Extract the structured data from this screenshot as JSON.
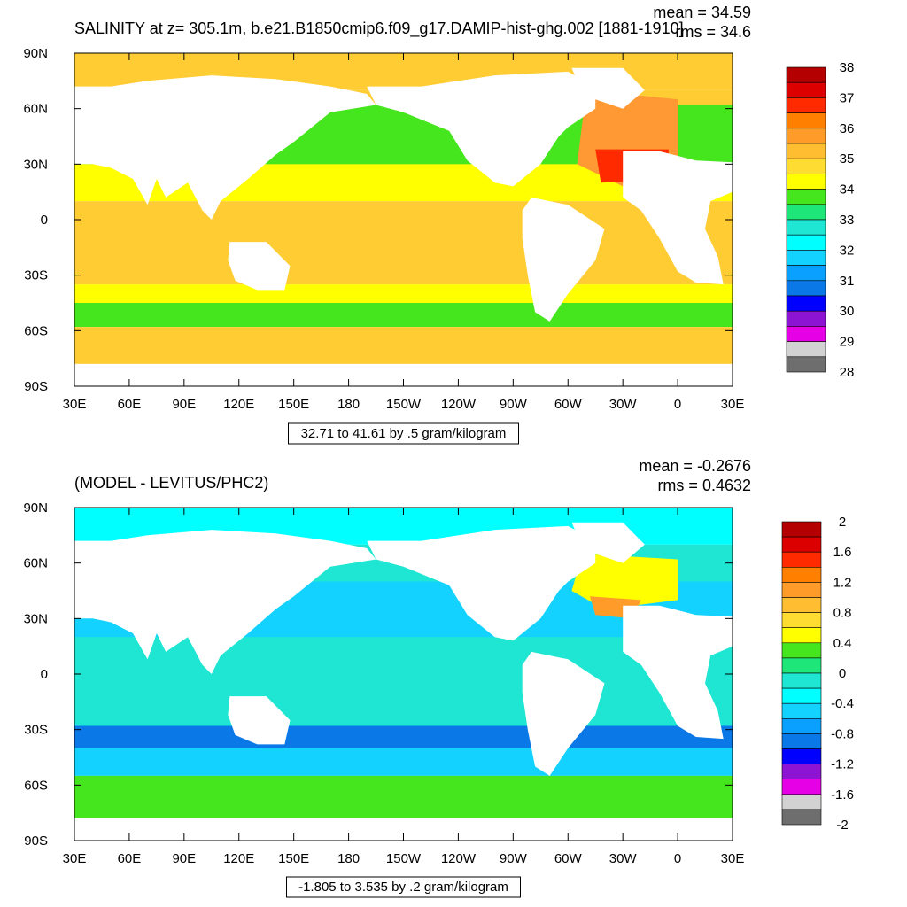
{
  "chart_data": [
    {
      "type": "heatmap",
      "map": "global contour map",
      "title": "SALINITY at z= 305.1m, b.e21.B1850cmip6.f09_g17.DAMIP-hist-ghg.002 [1881-1910]",
      "stats": [
        "mean = 34.59",
        "rms = 34.6"
      ],
      "subtitle": "32.71 to 41.61 by .5 gram/kilogram",
      "xticks": [
        "30E",
        "60E",
        "90E",
        "120E",
        "150E",
        "180",
        "150W",
        "120W",
        "90W",
        "60W",
        "30W",
        "0",
        "30E"
      ],
      "yticks": [
        "90N",
        "60N",
        "30N",
        "0",
        "30S",
        "60S",
        "90S"
      ],
      "colorbar": {
        "labels": [
          "38",
          "37",
          "36",
          "35",
          "34",
          "33",
          "32",
          "31",
          "30",
          "29",
          "28"
        ],
        "colors": [
          "#b40000",
          "#dc0000",
          "#ff2a00",
          "#ff7f00",
          "#ff9b28",
          "#ffbe32",
          "#ffdc32",
          "#ffff00",
          "#46e61e",
          "#1ee678",
          "#1ee6d2",
          "#00ffff",
          "#14d2ff",
          "#0aa0ff",
          "#0a78e6",
          "#0000ff",
          "#8c14d2",
          "#e600e6",
          "#d2d2d2",
          "#6e6e6e"
        ]
      },
      "regions": {
        "arctic": "#ffcc33",
        "north_pacific": "#46e61e",
        "subtropical_pacific": "#ffff00",
        "tropical": "#ffcc33",
        "north_atlantic": "#ff9933",
        "atlantic_max": "#ff2a00",
        "southern_ocean": "#46e61e",
        "antarctic": "#ffcc33"
      }
    },
    {
      "type": "heatmap",
      "map": "global contour map",
      "title": "(MODEL - LEVITUS/PHC2)",
      "stats": [
        "mean = -0.2676",
        "rms = 0.4632"
      ],
      "subtitle": "-1.805 to 3.535 by .2 gram/kilogram",
      "xticks": [
        "30E",
        "60E",
        "90E",
        "120E",
        "150E",
        "180",
        "150W",
        "120W",
        "90W",
        "60W",
        "30W",
        "0",
        "30E"
      ],
      "yticks": [
        "90N",
        "60N",
        "30N",
        "0",
        "30S",
        "60S",
        "90S"
      ],
      "colorbar": {
        "labels": [
          "2",
          "1.6",
          "1.2",
          "0.8",
          "0.4",
          "0",
          "-0.4",
          "-0.8",
          "-1.2",
          "-1.6",
          "-2"
        ],
        "colors": [
          "#b40000",
          "#dc0000",
          "#ff2a00",
          "#ff7f00",
          "#ff9b28",
          "#ffbe32",
          "#ffdc32",
          "#ffff00",
          "#46e61e",
          "#1ee678",
          "#1ee6d2",
          "#00ffff",
          "#14d2ff",
          "#0aa0ff",
          "#0a78e6",
          "#0000ff",
          "#8c14d2",
          "#e600e6",
          "#d2d2d2",
          "#6e6e6e"
        ]
      },
      "regions": {
        "ocean_base": "#1ee6d2",
        "arctic": "#00ffff",
        "subtropical_gyre": "#14d2ff",
        "indian_south": "#0a78e6",
        "southern_band": "#14d2ff",
        "antarctic": "#46e61e",
        "north_atlantic": "#ffff00",
        "gulf_stream": "#ff9b28"
      }
    }
  ]
}
